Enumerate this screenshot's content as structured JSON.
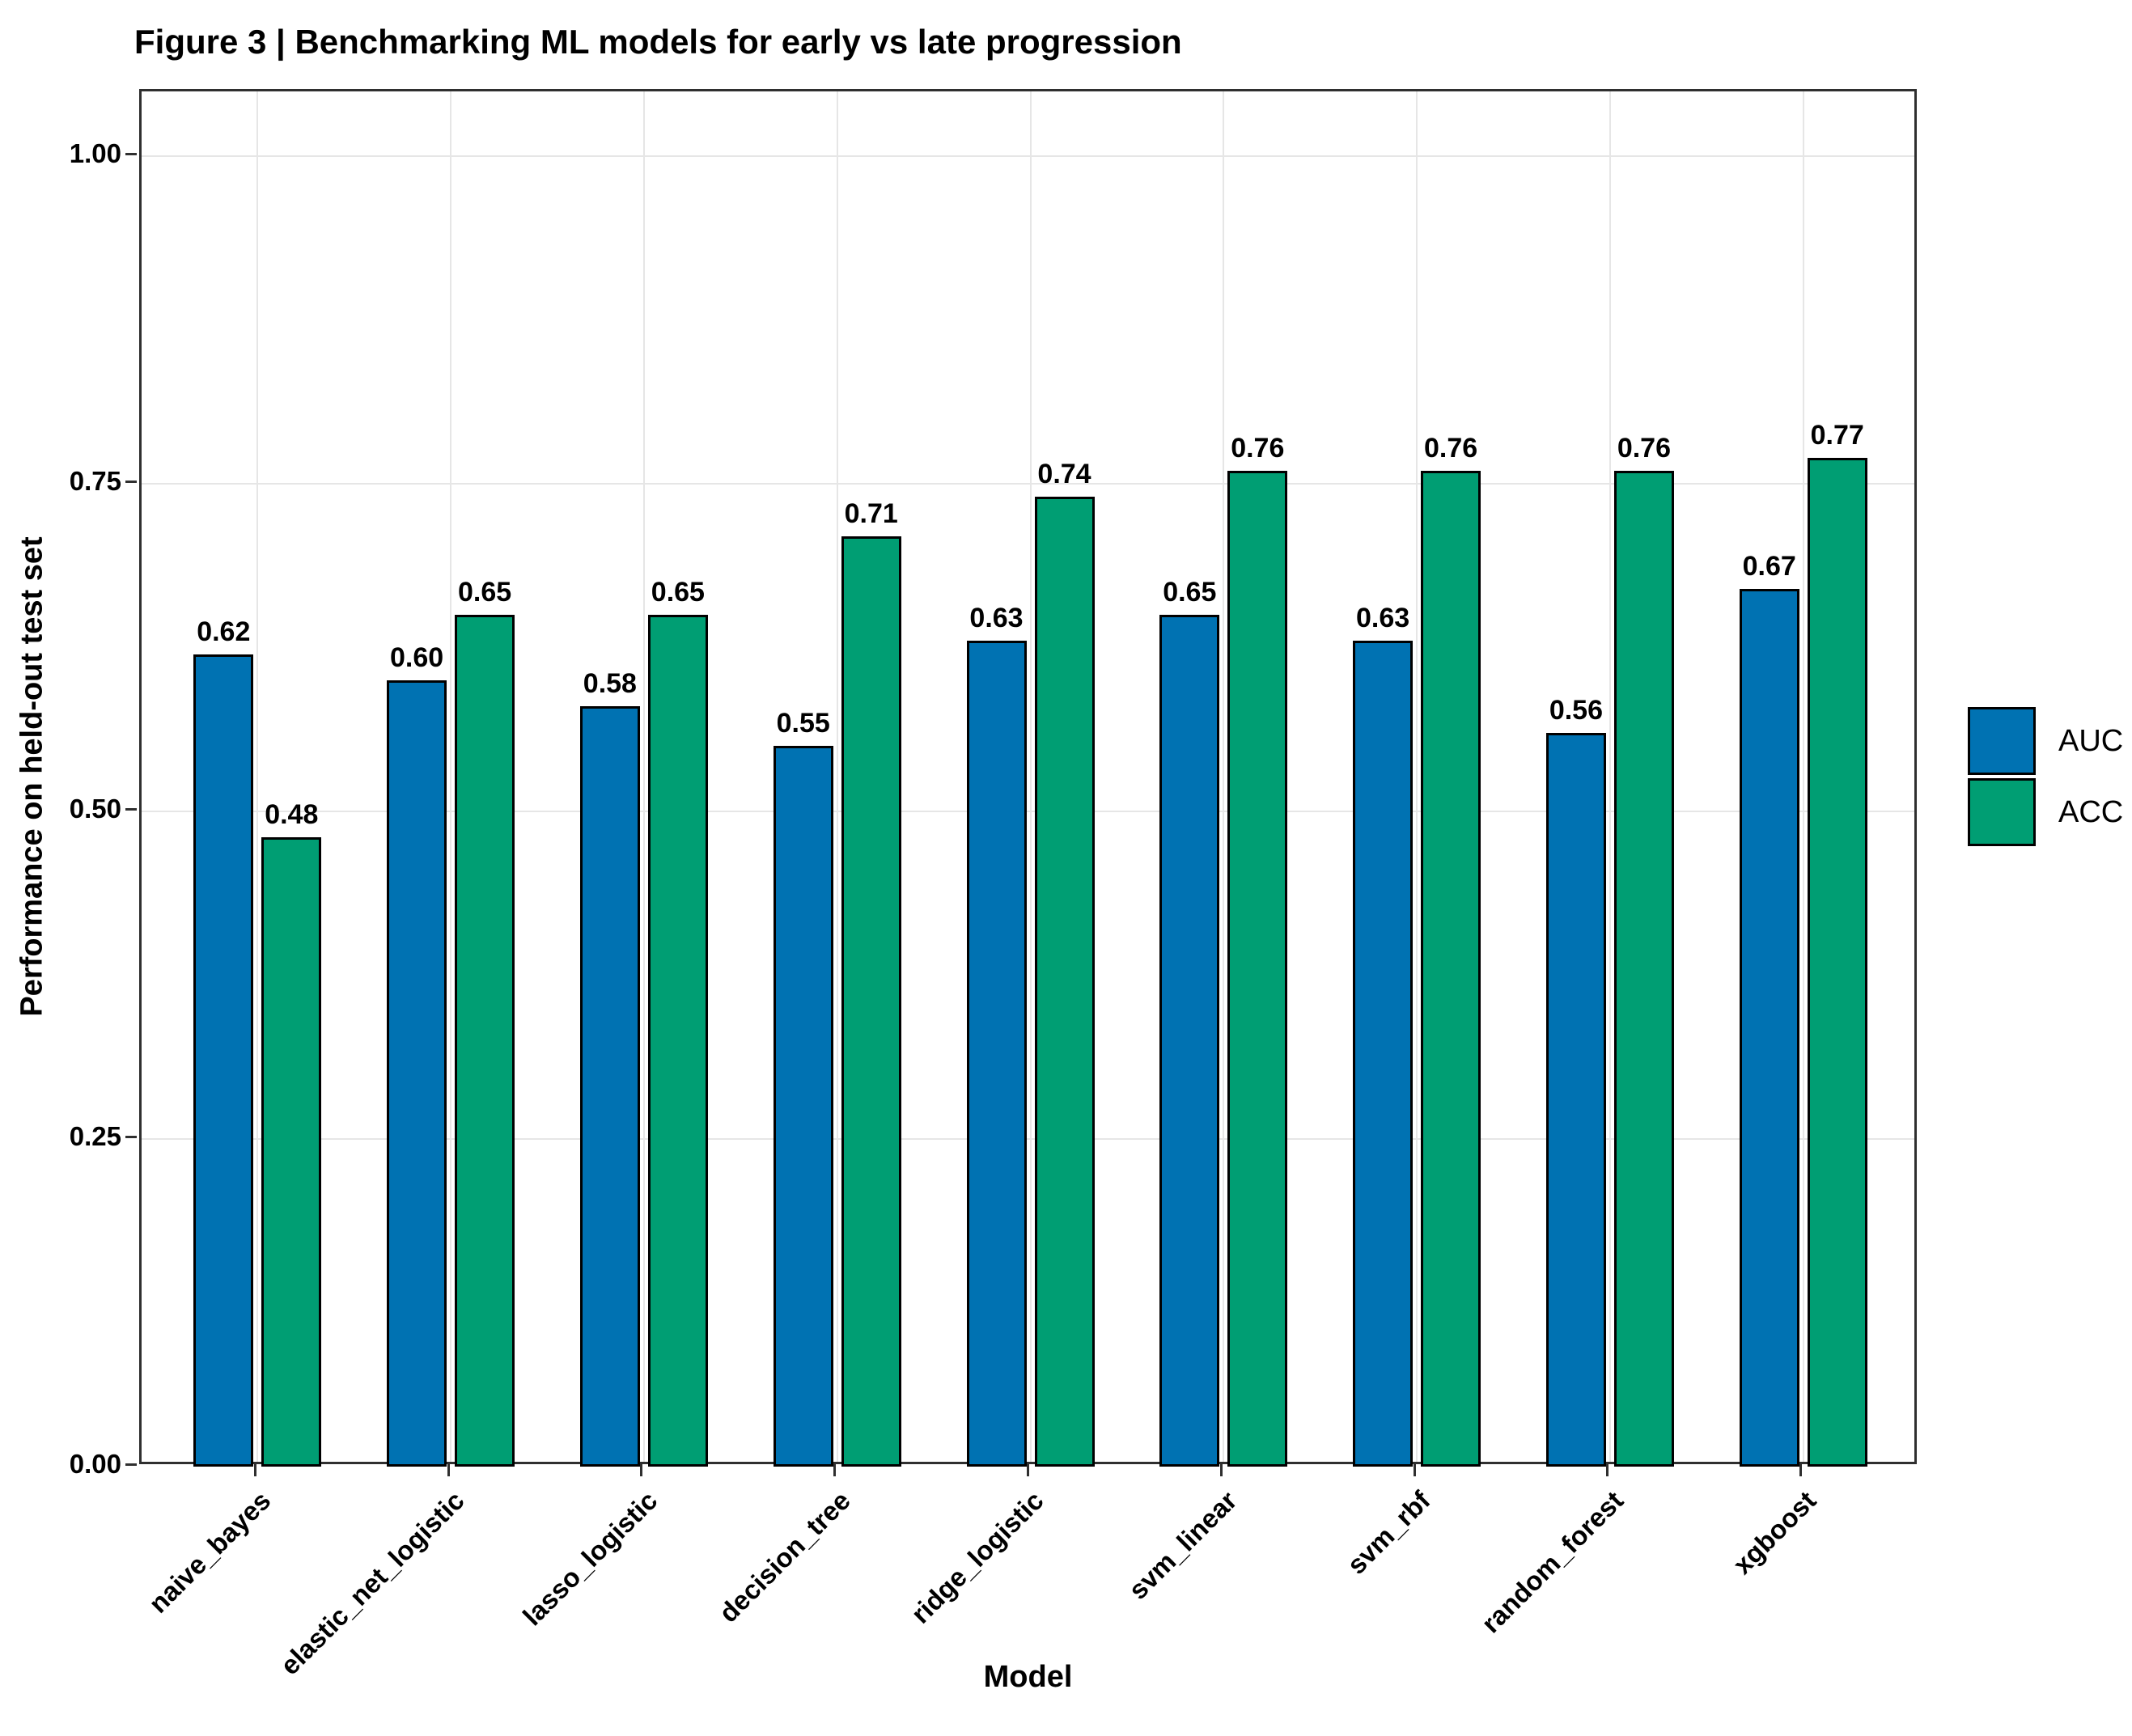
{
  "chart_data": {
    "type": "bar",
    "title": "Figure 3 | Benchmarking ML models for early vs late progression",
    "xlabel": "Model",
    "ylabel": "Performance on held-out test set",
    "ylim": [
      0,
      1.05
    ],
    "yticks": [
      "0.00",
      "0.25",
      "0.50",
      "0.75",
      "1.00"
    ],
    "grid": true,
    "legend_position": "right",
    "categories": [
      "naive_bayes",
      "elastic_net_logistic",
      "lasso_logistic",
      "decision_tree",
      "ridge_logistic",
      "svm_linear",
      "svm_rbf",
      "random_forest",
      "xgboost"
    ],
    "series": [
      {
        "name": "AUC",
        "color": "#0072B2",
        "values": [
          0.62,
          0.6,
          0.58,
          0.55,
          0.63,
          0.65,
          0.63,
          0.56,
          0.67
        ],
        "labels": [
          "0.62",
          "0.60",
          "0.58",
          "0.55",
          "0.63",
          "0.65",
          "0.63",
          "0.56",
          "0.67"
        ]
      },
      {
        "name": "ACC",
        "color": "#009E73",
        "values": [
          0.48,
          0.65,
          0.65,
          0.71,
          0.74,
          0.76,
          0.76,
          0.76,
          0.77
        ],
        "labels": [
          "0.48",
          "0.65",
          "0.65",
          "0.71",
          "0.74",
          "0.76",
          "0.76",
          "0.76",
          "0.77"
        ]
      }
    ],
    "colors": {
      "bar_outline": "#000000",
      "grid": "#E6E6E6",
      "panel_border": "#2F2F2F",
      "text": "#000000",
      "background": "#FFFFFF"
    }
  }
}
